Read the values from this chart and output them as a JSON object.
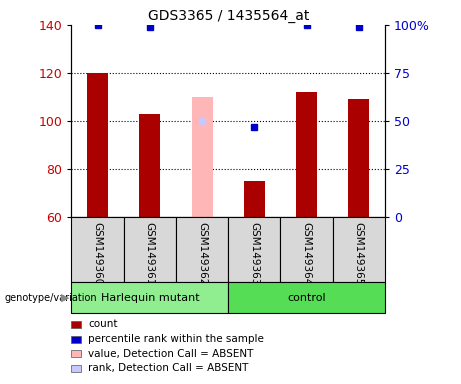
{
  "title": "GDS3365 / 1435564_at",
  "samples": [
    "GSM149360",
    "GSM149361",
    "GSM149362",
    "GSM149363",
    "GSM149364",
    "GSM149365"
  ],
  "count_values": [
    120,
    103,
    null,
    75,
    112,
    109
  ],
  "count_absent_values": [
    null,
    null,
    110,
    null,
    null,
    null
  ],
  "percentile_values": [
    100,
    99,
    null,
    47,
    100,
    99
  ],
  "percentile_absent_values": [
    null,
    null,
    50,
    null,
    null,
    null
  ],
  "genotype_groups": [
    {
      "label": "Harlequin mutant",
      "indices": [
        0,
        1,
        2
      ],
      "color": "#90ee90"
    },
    {
      "label": "control",
      "indices": [
        3,
        4,
        5
      ],
      "color": "#55dd55"
    }
  ],
  "ylim_left": [
    60,
    140
  ],
  "ylim_right": [
    0,
    100
  ],
  "yticks_left": [
    60,
    80,
    100,
    120,
    140
  ],
  "yticks_right": [
    0,
    25,
    50,
    75,
    100
  ],
  "ytick_labels_right": [
    "0",
    "25",
    "50",
    "75",
    "100%"
  ],
  "bar_color_present": "#aa0000",
  "bar_color_absent": "#ffb6b6",
  "dot_color_present": "#0000cc",
  "dot_color_absent": "#c8c8ff",
  "tick_label_color_left": "#cc0000",
  "tick_label_color_right": "#0000cc",
  "grid_color": "black",
  "sample_box_color": "#d8d8d8",
  "plot_bg": "white",
  "legend_items": [
    {
      "label": "count",
      "color": "#aa0000"
    },
    {
      "label": "percentile rank within the sample",
      "color": "#0000cc"
    },
    {
      "label": "value, Detection Call = ABSENT",
      "color": "#ffb6b6"
    },
    {
      "label": "rank, Detection Call = ABSENT",
      "color": "#c8c8ff"
    }
  ]
}
